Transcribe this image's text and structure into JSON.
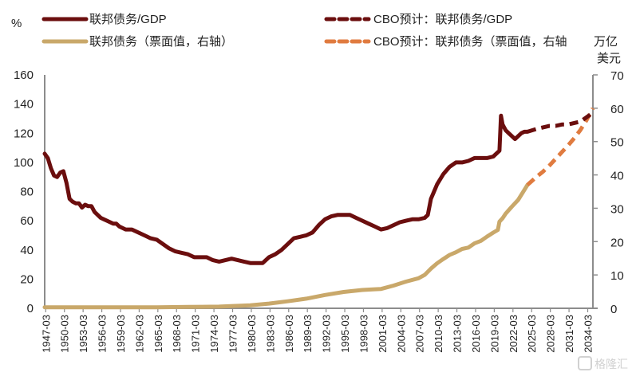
{
  "chart_data": {
    "type": "line",
    "title": "",
    "ylabel_left": "%",
    "ylabel_right": [
      "万亿",
      "美元"
    ],
    "ylim_left": [
      0,
      160
    ],
    "ylim_right": [
      0,
      70
    ],
    "yticks_left": [
      "0",
      "20",
      "40",
      "60",
      "80",
      "100",
      "120",
      "140",
      "160"
    ],
    "yticks_right": [
      "0",
      "10",
      "20",
      "30",
      "40",
      "50",
      "60",
      "70"
    ],
    "xlim": [
      1947,
      2035
    ],
    "xtick_labels": [
      "1947-03",
      "1950-03",
      "1953-03",
      "1956-03",
      "1959-03",
      "1962-03",
      "1965-03",
      "1968-03",
      "1971-03",
      "1974-03",
      "1977-03",
      "1980-03",
      "1983-03",
      "1986-03",
      "1989-03",
      "1992-03",
      "1995-03",
      "1998-03",
      "2001-03",
      "2004-03",
      "2007-03",
      "2010-03",
      "2013-03",
      "2016-03",
      "2019-03",
      "2022-03",
      "2025-03",
      "2028-03",
      "2031-03",
      "2034-03"
    ],
    "legend": {
      "placement": "top"
    },
    "grid": false,
    "series": [
      {
        "name": "联邦债务/GDP",
        "axis": "left",
        "style": "solid",
        "color": "#6b0e0e",
        "x": [
          1947.0,
          1947.5,
          1948.0,
          1948.5,
          1949.0,
          1949.5,
          1950.0,
          1950.5,
          1951.0,
          1951.5,
          1952.0,
          1952.5,
          1953.0,
          1953.5,
          1954.0,
          1954.5,
          1955.0,
          1955.5,
          1956.0,
          1957.0,
          1958.0,
          1958.5,
          1959.0,
          1960.0,
          1961.0,
          1962.0,
          1963.0,
          1964.0,
          1965.0,
          1966.0,
          1967.0,
          1968.0,
          1969.0,
          1970.0,
          1971.0,
          1972.0,
          1973.0,
          1974.0,
          1975.0,
          1976.0,
          1977.0,
          1978.0,
          1979.0,
          1980.0,
          1981.0,
          1982.0,
          1983.0,
          1984.0,
          1985.0,
          1986.0,
          1987.0,
          1988.0,
          1989.0,
          1990.0,
          1991.0,
          1992.0,
          1993.0,
          1994.0,
          1995.0,
          1996.0,
          1997.0,
          1998.0,
          1999.0,
          2000.0,
          2001.0,
          2002.0,
          2003.0,
          2004.0,
          2005.0,
          2006.0,
          2007.0,
          2008.0,
          2008.5,
          2009.0,
          2009.5,
          2010.0,
          2011.0,
          2012.0,
          2013.0,
          2014.0,
          2015.0,
          2016.0,
          2017.0,
          2018.0,
          2019.0,
          2019.75,
          2020.0,
          2020.25,
          2020.5,
          2021.0,
          2021.5,
          2022.0,
          2022.5,
          2023.0,
          2023.5,
          2024.0,
          2024.5
        ],
        "values": [
          106,
          103,
          96,
          91,
          90,
          93,
          94,
          86,
          75,
          73,
          72,
          72,
          69,
          71,
          70,
          70,
          66,
          64,
          62,
          60,
          58,
          58,
          56,
          54,
          54,
          52,
          50,
          48,
          47,
          44,
          41,
          39,
          38,
          37,
          35,
          35,
          35,
          33,
          32,
          33,
          34,
          33,
          32,
          31,
          31,
          31,
          35,
          37,
          40,
          44,
          48,
          49,
          50,
          52,
          57,
          61,
          63,
          64,
          64,
          64,
          62,
          60,
          58,
          56,
          54,
          55,
          57,
          59,
          60,
          61,
          61,
          62,
          64,
          75,
          80,
          85,
          92,
          97,
          100,
          100,
          101,
          103,
          103,
          103,
          104,
          107,
          108,
          132,
          126,
          122,
          120,
          118,
          116,
          118,
          120,
          121,
          121
        ]
      },
      {
        "name": "CBO预计：联邦债务/GDP",
        "axis": "left",
        "style": "dashed",
        "color": "#6b0e0e",
        "x": [
          2024.5,
          2026.0,
          2027.0,
          2028.0,
          2029.0,
          2030.0,
          2031.0,
          2032.0,
          2033.0,
          2034.0,
          2035.0
        ],
        "values": [
          121,
          123,
          124,
          125,
          125,
          126,
          126,
          127,
          128,
          131,
          134
        ]
      },
      {
        "name": "联邦债务（票面值，右轴）",
        "axis": "right",
        "style": "solid",
        "color": "#c9a86a",
        "x": [
          1947,
          1955,
          1965,
          1970,
          1975,
          1980,
          1983,
          1986,
          1989,
          1992,
          1995,
          1998,
          2000,
          2001,
          2003,
          2005,
          2007,
          2008,
          2009,
          2010,
          2011,
          2012,
          2013,
          2014,
          2015,
          2016,
          2017,
          2018,
          2019,
          2019.75,
          2020.0,
          2020.5,
          2021,
          2022,
          2023,
          2024,
          2024.5
        ],
        "values": [
          0.3,
          0.3,
          0.3,
          0.4,
          0.5,
          0.9,
          1.4,
          2.1,
          2.9,
          4.0,
          4.9,
          5.5,
          5.7,
          5.8,
          6.8,
          8.0,
          9.0,
          10.0,
          11.9,
          13.5,
          14.8,
          16.0,
          16.8,
          17.8,
          18.2,
          19.5,
          20.2,
          21.5,
          22.7,
          23.5,
          26.0,
          27.0,
          28.4,
          30.5,
          32.5,
          35.5,
          37.0
        ]
      },
      {
        "name": "CBO预计：联邦债务（票面值，右轴",
        "axis": "right",
        "style": "dashed",
        "color": "#e07b3f",
        "x": [
          2024.5,
          2026,
          2027,
          2028,
          2029,
          2030,
          2031,
          2032,
          2033,
          2034,
          2035
        ],
        "values": [
          37.0,
          39.5,
          41.0,
          42.8,
          44.8,
          46.8,
          48.8,
          51.0,
          53.5,
          56.5,
          60.0
        ]
      }
    ]
  },
  "watermark": "格隆汇"
}
